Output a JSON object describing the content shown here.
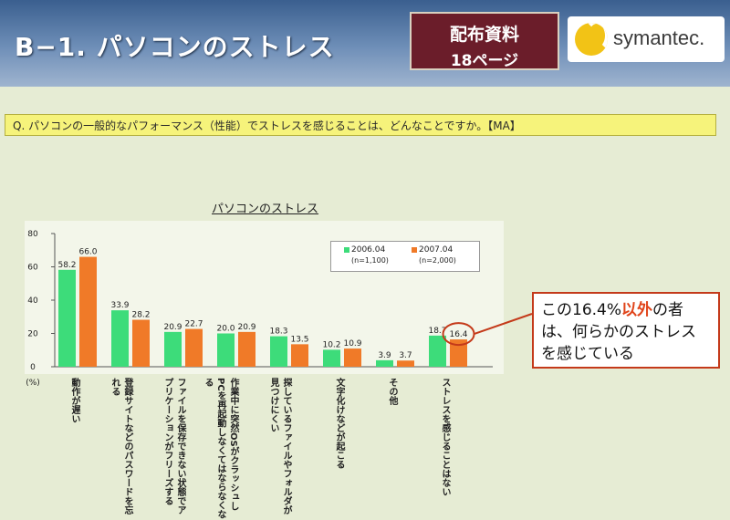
{
  "header": {
    "title": "B−1. パソコンのストレス",
    "badge_line1": "配布資料",
    "badge_line2": "18ページ",
    "logo_text": "symantec."
  },
  "question": "Q. パソコンの一般的なパフォーマンス（性能）でストレスを感じることは、どんなことですか。【MA】",
  "callout": {
    "part1": "この16.4%",
    "highlight": "以外",
    "part2": "の者",
    "line2": "は、何らかのストレス",
    "line3": "を感じている"
  },
  "colors": {
    "series_2006": "#3ddc7a",
    "series_2007": "#f07a28",
    "accent": "#c43a1a"
  },
  "chart_data": {
    "type": "bar",
    "title": "パソコンのストレス",
    "ylabel": "(%)",
    "ylim": [
      0,
      80
    ],
    "yticks": [
      0,
      20,
      40,
      60,
      80
    ],
    "categories": [
      "動作が遅い",
      "登録サイトなどのパスワードを忘れる",
      "ファイルを保存できない状態でアプリケーションがフリーズする",
      "作業中に突然OSがクラッシュしPCを再起動しなくてはならなくなる",
      "探しているファイルやフォルダが見つけにくい",
      "文字化けなどが起こる",
      "その他",
      "ストレスを感じることはない"
    ],
    "series": [
      {
        "name": "2006.04",
        "n": "(n=1,100)",
        "values": [
          58.2,
          33.9,
          20.9,
          20.0,
          18.3,
          10.2,
          3.9,
          18.7
        ]
      },
      {
        "name": "2007.04",
        "n": "(n=2,000)",
        "values": [
          66.0,
          28.2,
          22.7,
          20.9,
          13.5,
          10.9,
          3.7,
          16.4
        ]
      }
    ]
  }
}
